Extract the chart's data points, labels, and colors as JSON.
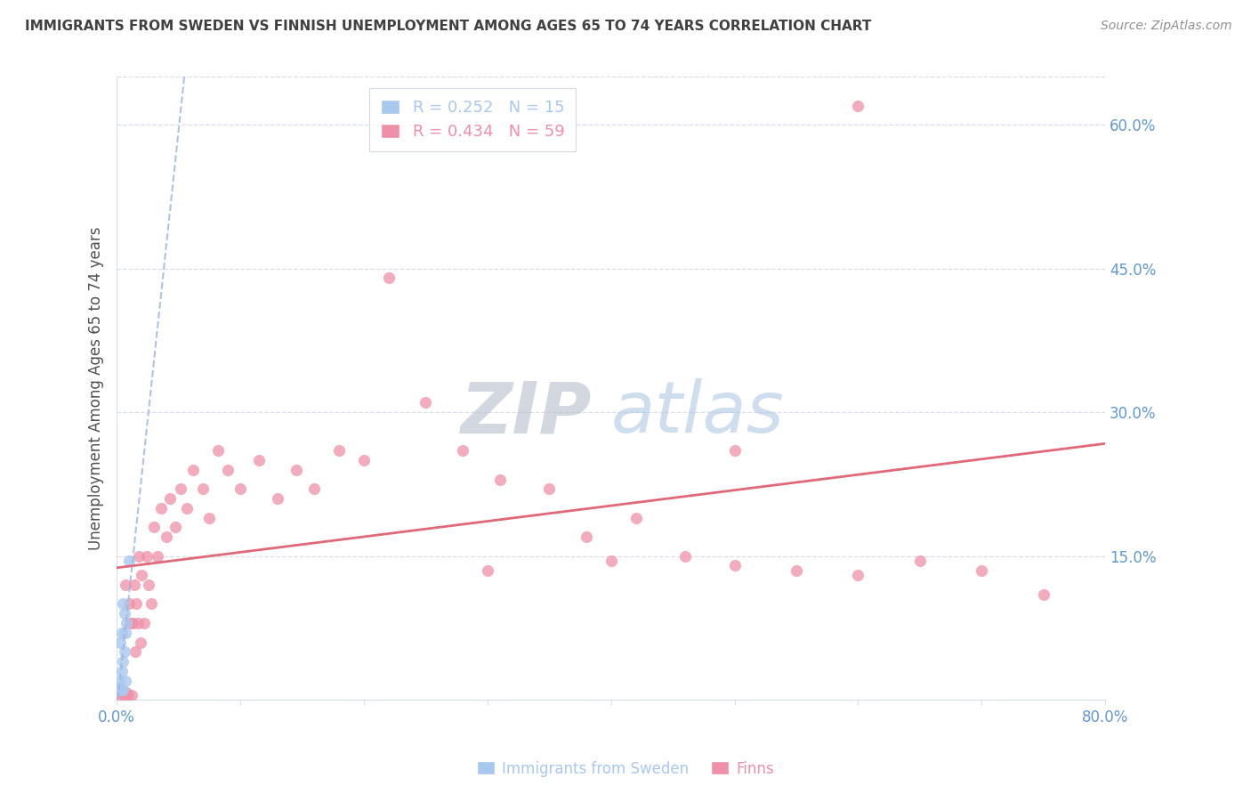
{
  "title": "IMMIGRANTS FROM SWEDEN VS FINNISH UNEMPLOYMENT AMONG AGES 65 TO 74 YEARS CORRELATION CHART",
  "source": "Source: ZipAtlas.com",
  "ylabel": "Unemployment Among Ages 65 to 74 years",
  "watermark_zip": "ZIP",
  "watermark_atlas": "atlas",
  "xlim": [
    0.0,
    0.8
  ],
  "ylim": [
    0.0,
    0.65
  ],
  "xticks": [
    0.0,
    0.1,
    0.2,
    0.3,
    0.4,
    0.5,
    0.6,
    0.7,
    0.8
  ],
  "xticklabels": [
    "0.0%",
    "",
    "",
    "",
    "",
    "",
    "",
    "",
    "80.0%"
  ],
  "yticks_right": [
    0.15,
    0.3,
    0.45,
    0.6
  ],
  "yticklabels_right": [
    "15.0%",
    "30.0%",
    "45.0%",
    "60.0%"
  ],
  "legend_label1": "R = 0.252   N = 15",
  "legend_label2": "R = 0.434   N = 59",
  "legend_bottom_label1": "Immigrants from Sweden",
  "legend_bottom_label2": "Finns",
  "color_blue": "#a8c8f0",
  "color_pink": "#f090a8",
  "color_trendline_blue": "#a0b8e0",
  "color_trendline_pink": "#e06878",
  "grid_color": "#d8dfe8",
  "background_color": "#ffffff",
  "title_color": "#404040",
  "source_color": "#909090",
  "axis_label_color": "#505050",
  "right_tick_color": "#6098d0",
  "bottom_tick_color": "#6098d0",
  "sweden_x": [
    0.002,
    0.003,
    0.003,
    0.004,
    0.004,
    0.004,
    0.005,
    0.005,
    0.005,
    0.006,
    0.006,
    0.007,
    0.007,
    0.008,
    0.01
  ],
  "sweden_y": [
    0.02,
    0.01,
    0.06,
    0.01,
    0.03,
    0.07,
    0.01,
    0.04,
    0.1,
    0.05,
    0.09,
    0.02,
    0.07,
    0.08,
    0.145
  ],
  "finns_x": [
    0.003,
    0.005,
    0.006,
    0.007,
    0.008,
    0.009,
    0.01,
    0.011,
    0.012,
    0.013,
    0.014,
    0.015,
    0.016,
    0.017,
    0.018,
    0.019,
    0.02,
    0.022,
    0.024,
    0.026,
    0.028,
    0.03,
    0.033,
    0.036,
    0.04,
    0.043,
    0.047,
    0.052,
    0.057,
    0.062,
    0.07,
    0.075,
    0.082,
    0.09,
    0.1,
    0.115,
    0.13,
    0.145,
    0.16,
    0.18,
    0.2,
    0.22,
    0.25,
    0.28,
    0.31,
    0.35,
    0.38,
    0.42,
    0.46,
    0.5,
    0.55,
    0.6,
    0.65,
    0.7,
    0.75,
    0.6,
    0.5,
    0.4,
    0.3
  ],
  "finns_y": [
    0.005,
    0.008,
    0.005,
    0.12,
    0.008,
    0.005,
    0.1,
    0.08,
    0.005,
    0.08,
    0.12,
    0.05,
    0.1,
    0.08,
    0.15,
    0.06,
    0.13,
    0.08,
    0.15,
    0.12,
    0.1,
    0.18,
    0.15,
    0.2,
    0.17,
    0.21,
    0.18,
    0.22,
    0.2,
    0.24,
    0.22,
    0.19,
    0.26,
    0.24,
    0.22,
    0.25,
    0.21,
    0.24,
    0.22,
    0.26,
    0.25,
    0.44,
    0.31,
    0.26,
    0.23,
    0.22,
    0.17,
    0.19,
    0.15,
    0.14,
    0.135,
    0.13,
    0.145,
    0.135,
    0.11,
    0.62,
    0.26,
    0.145,
    0.135
  ]
}
